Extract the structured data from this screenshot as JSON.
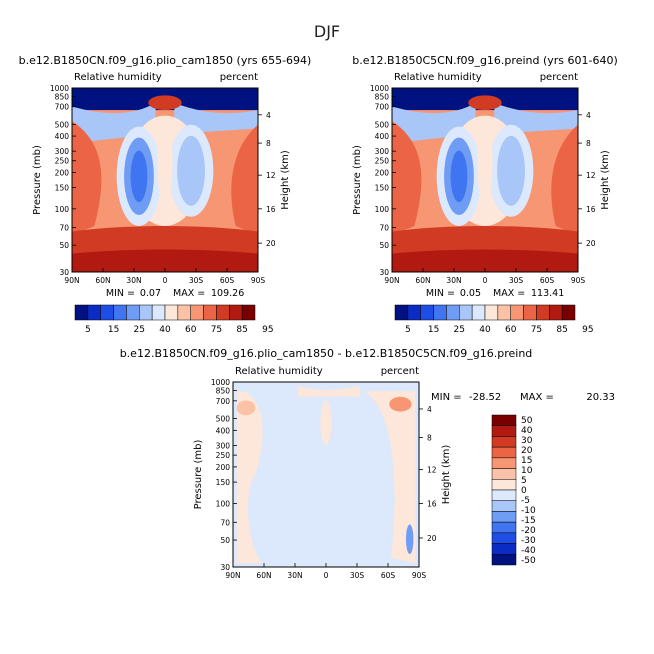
{
  "page": {
    "title": "DJF"
  },
  "colors": {
    "seq": [
      "#00127f",
      "#0a2cc4",
      "#1f4ee6",
      "#3f75f0",
      "#6f9cf4",
      "#a9c6f8",
      "#dce9fc",
      "#fde6da",
      "#fbc2a8",
      "#f69672",
      "#ea6445",
      "#d23b23",
      "#b01a10",
      "#7a0000"
    ],
    "diff": [
      "#00127f",
      "#0a2cc4",
      "#1f4ee6",
      "#3f75f0",
      "#6f9cf4",
      "#a9c6f8",
      "#dce9fc",
      "#fde6da",
      "#fbc2a8",
      "#f69672",
      "#ea6445",
      "#d23b23",
      "#b01a10",
      "#7a0000"
    ]
  },
  "chart_data": [
    {
      "type": "heatmap",
      "id": "plio",
      "title": "b.e12.B1850CN.f09_g16.plio_cam1850 (yrs 655-694)",
      "left_label": "Relative humidity",
      "right_label": "percent",
      "xlabel": "",
      "ylabel": "Pressure (mb)",
      "y2label": "Height (km)",
      "x_ticks": [
        "90N",
        "60N",
        "30N",
        "0",
        "30S",
        "60S",
        "90S"
      ],
      "y_ticks": [
        1000,
        850,
        700,
        500,
        400,
        300,
        250,
        200,
        150,
        100,
        70,
        50,
        30
      ],
      "y2_ticks": [
        4,
        8,
        12,
        16,
        20
      ],
      "ylim": [
        1000,
        30
      ],
      "min_text": "MIN =",
      "min_value": "0.07",
      "max_text": "MAX =",
      "max_value": "109.26",
      "colorbar_levels": [
        5,
        10,
        15,
        20,
        25,
        30,
        40,
        50,
        60,
        70,
        75,
        80,
        85,
        90,
        95
      ],
      "colorbar_labels": [
        "5",
        "15",
        "25",
        "40",
        "60",
        "75",
        "85",
        "95"
      ]
    },
    {
      "type": "heatmap",
      "id": "preind",
      "title": "b.e12.B1850C5CN.f09_g16.preind (yrs 601-640)",
      "left_label": "Relative humidity",
      "right_label": "percent",
      "xlabel": "",
      "ylabel": "Pressure (mb)",
      "y2label": "Height (km)",
      "x_ticks": [
        "90N",
        "60N",
        "30N",
        "0",
        "30S",
        "60S",
        "90S"
      ],
      "y_ticks": [
        1000,
        850,
        700,
        500,
        400,
        300,
        250,
        200,
        150,
        100,
        70,
        50,
        30
      ],
      "y2_ticks": [
        4,
        8,
        12,
        16,
        20
      ],
      "ylim": [
        1000,
        30
      ],
      "min_text": "MIN =",
      "min_value": "0.05",
      "max_text": "MAX =",
      "max_value": "113.41",
      "colorbar_levels": [
        5,
        10,
        15,
        20,
        25,
        30,
        40,
        50,
        60,
        70,
        75,
        80,
        85,
        90,
        95
      ],
      "colorbar_labels": [
        "5",
        "15",
        "25",
        "40",
        "60",
        "75",
        "85",
        "95"
      ]
    },
    {
      "type": "heatmap",
      "id": "diff",
      "title": "b.e12.B1850CN.f09_g16.plio_cam1850 - b.e12.B1850C5CN.f09_g16.preind",
      "left_label": "Relative humidity",
      "right_label": "percent",
      "xlabel": "",
      "ylabel": "Pressure (mb)",
      "y2label": "Height (km)",
      "x_ticks": [
        "90N",
        "60N",
        "30N",
        "0",
        "30S",
        "60S",
        "90S"
      ],
      "y_ticks": [
        1000,
        850,
        700,
        500,
        400,
        300,
        250,
        200,
        150,
        100,
        70,
        50,
        30
      ],
      "y2_ticks": [
        4,
        8,
        12,
        16,
        20
      ],
      "ylim": [
        1000,
        30
      ],
      "min_text": "MIN =",
      "min_value": "-28.52",
      "max_text": "MAX =",
      "max_value": "20.33",
      "colorbar_labels": [
        "50",
        "40",
        "30",
        "20",
        "15",
        "10",
        "5",
        "0",
        "-5",
        "-10",
        "-15",
        "-20",
        "-30",
        "-40",
        "-50"
      ]
    }
  ]
}
